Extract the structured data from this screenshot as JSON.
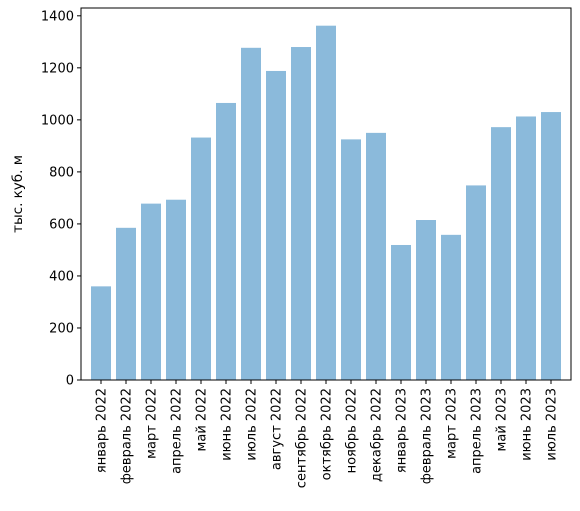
{
  "chart_data": {
    "type": "bar",
    "title": "",
    "xlabel": "",
    "ylabel": "тыс. куб. м",
    "ylim": [
      0,
      1400
    ],
    "yticks": [
      0,
      200,
      400,
      600,
      800,
      1000,
      1200,
      1400
    ],
    "grid": false,
    "bar_color": "#8bbadb",
    "categories": [
      "январь 2022",
      "февраль 2022",
      "март 2022",
      "апрель 2022",
      "май 2022",
      "июнь 2022",
      "июль 2022",
      "август 2022",
      "сентябрь 2022",
      "октябрь 2022",
      "ноябрь 2022",
      "декабрь 2022",
      "январь 2023",
      "февраль 2023",
      "март 2023",
      "апрель 2023",
      "май 2023",
      "июнь 2023",
      "июль 2023"
    ],
    "values": [
      360,
      585,
      678,
      693,
      932,
      1065,
      1277,
      1188,
      1280,
      1362,
      925,
      950,
      519,
      615,
      558,
      748,
      972,
      1013,
      1030
    ]
  }
}
